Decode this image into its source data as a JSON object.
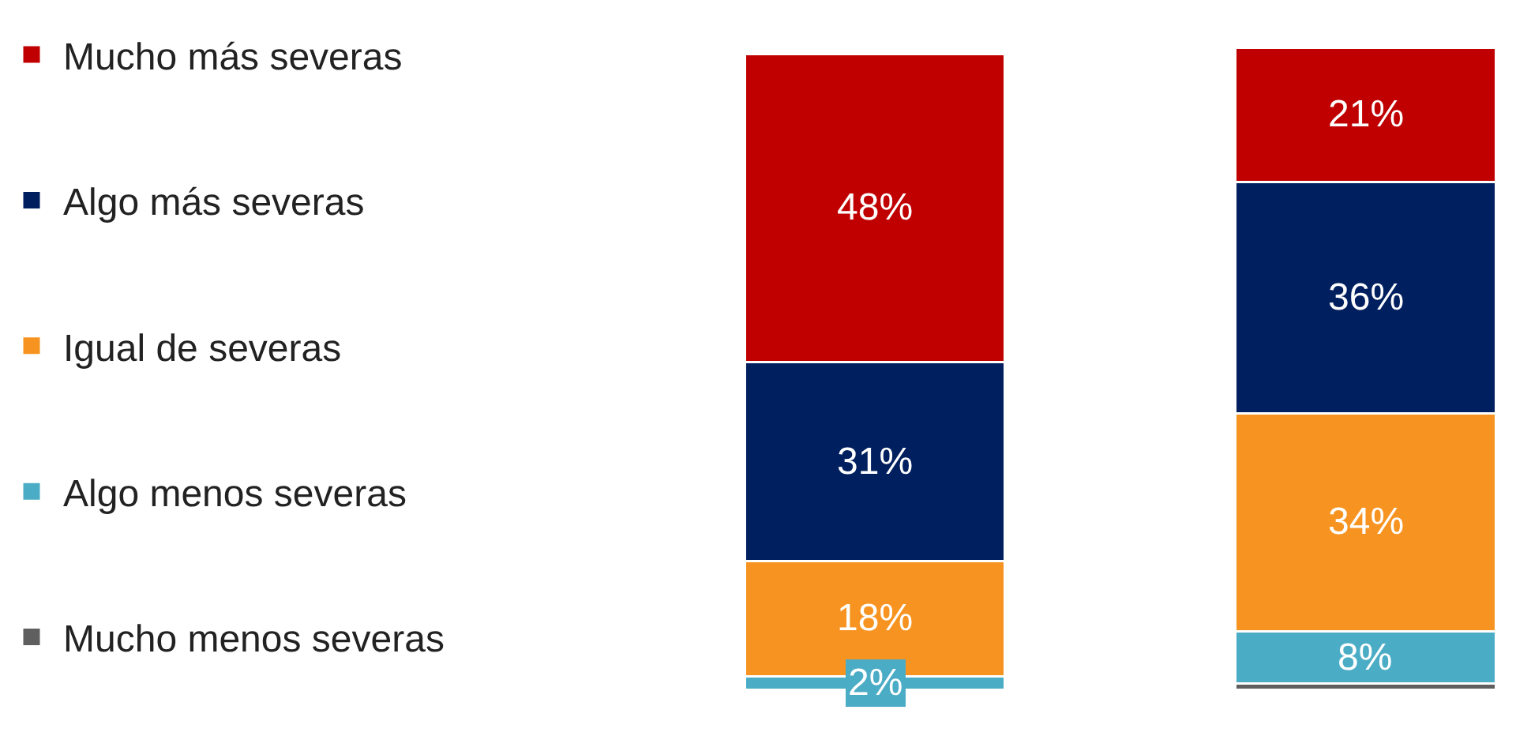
{
  "chart_data": {
    "type": "bar",
    "stacked": true,
    "categories": [
      null,
      null
    ],
    "legend": "left",
    "series": [
      {
        "name": "Mucho menos severas",
        "color": "#5f5f5f",
        "values": [
          0,
          1
        ],
        "value_labels": [
          null,
          null
        ]
      },
      {
        "name": "Algo menos severas",
        "color": "#4bacc6",
        "values": [
          2,
          8
        ],
        "value_labels": [
          "2%",
          "8%"
        ]
      },
      {
        "name": "Igual de severas",
        "color": "#f79421",
        "values": [
          18,
          34
        ],
        "value_labels": [
          "18%",
          "34%"
        ]
      },
      {
        "name": "Algo más severas",
        "color": "#001f5f",
        "values": [
          31,
          36
        ],
        "value_labels": [
          "31%",
          "36%"
        ]
      },
      {
        "name": "Mucho más severas",
        "color": "#c00000",
        "values": [
          48,
          21
        ],
        "value_labels": [
          "48%",
          "21%"
        ]
      }
    ]
  }
}
